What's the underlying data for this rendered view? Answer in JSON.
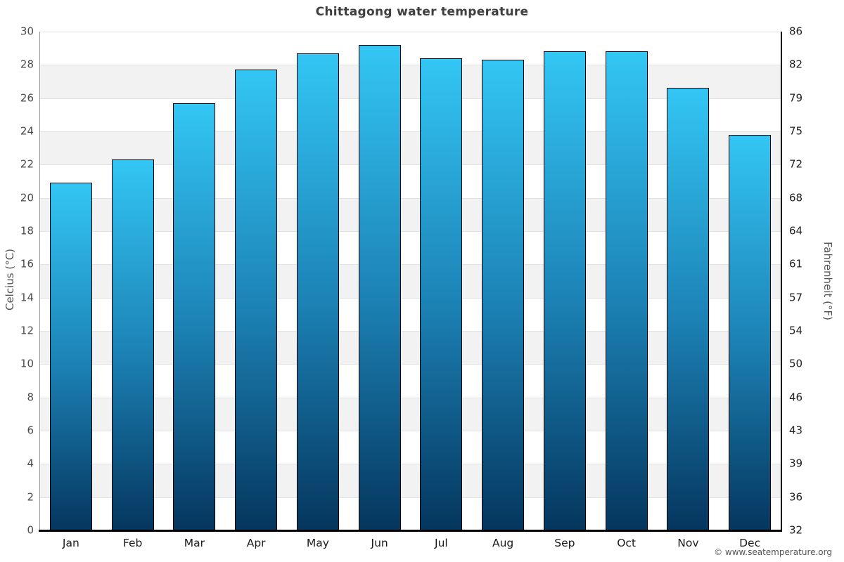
{
  "chart_data": {
    "type": "bar",
    "title": "Chittagong water temperature",
    "categories": [
      "Jan",
      "Feb",
      "Mar",
      "Apr",
      "May",
      "Jun",
      "Jul",
      "Aug",
      "Sep",
      "Oct",
      "Nov",
      "Dec"
    ],
    "values": [
      20.9,
      22.3,
      25.7,
      27.7,
      28.7,
      29.2,
      28.4,
      28.3,
      28.8,
      28.8,
      26.6,
      23.8
    ],
    "value_unit": "°C",
    "ylabel_left": "Celcius (°C)",
    "ylabel_right": "Fahrenheit (°F)",
    "ylim": [
      0,
      30
    ],
    "ytick_step": 2,
    "yticks_left": [
      "30",
      "28",
      "26",
      "24",
      "22",
      "20",
      "18",
      "16",
      "14",
      "12",
      "10",
      "8",
      "6",
      "4",
      "2",
      "0"
    ],
    "yticks_right": [
      "86",
      "82",
      "79",
      "75",
      "72",
      "68",
      "64",
      "61",
      "57",
      "54",
      "50",
      "46",
      "43",
      "39",
      "36",
      "32"
    ],
    "legend": "none",
    "grid": "horizontal gridlines every 2°C with alternating white/gray bands",
    "copyright": "© www.seatemperature.org",
    "colors": {
      "bar_gradient_top": "#33c6f4",
      "bar_gradient_mid": "#1c82b5",
      "bar_gradient_bottom": "#05365e",
      "bar_border": "#000000",
      "band_white": "#ffffff",
      "band_gray": "#f2f2f2",
      "gridline": "#e2e2e2",
      "axis_left_line": "#999999",
      "axis_right_line": "#000000",
      "axis_bottom_line": "#000000",
      "title_color": "#3f3f3f"
    }
  }
}
